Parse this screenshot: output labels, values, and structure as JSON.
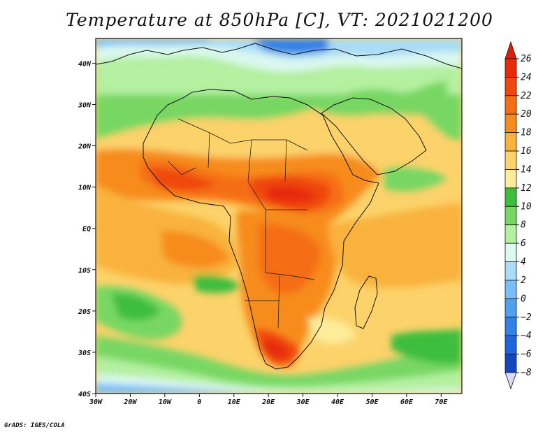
{
  "title": "Temperature at 850hPa [C], VT: 2021021200",
  "credit": "GrADS: IGES/COLA",
  "map": {
    "lon_range": [
      -30,
      76
    ],
    "lat_range": [
      -40,
      46
    ],
    "lon_ticks": [
      {
        "value": -30,
        "label": "30W"
      },
      {
        "value": -20,
        "label": "20W"
      },
      {
        "value": -10,
        "label": "10W"
      },
      {
        "value": 0,
        "label": "0"
      },
      {
        "value": 10,
        "label": "10E"
      },
      {
        "value": 20,
        "label": "20E"
      },
      {
        "value": 30,
        "label": "30E"
      },
      {
        "value": 40,
        "label": "40E"
      },
      {
        "value": 50,
        "label": "50E"
      },
      {
        "value": 60,
        "label": "60E"
      },
      {
        "value": 70,
        "label": "70E"
      }
    ],
    "lat_ticks": [
      {
        "value": 40,
        "label": "40N"
      },
      {
        "value": 30,
        "label": "30N"
      },
      {
        "value": 20,
        "label": "20N"
      },
      {
        "value": 10,
        "label": "10N"
      },
      {
        "value": 0,
        "label": "EQ"
      },
      {
        "value": -10,
        "label": "10S"
      },
      {
        "value": -20,
        "label": "20S"
      },
      {
        "value": -30,
        "label": "30S"
      },
      {
        "value": -40,
        "label": "40S"
      }
    ]
  },
  "colorbar": {
    "levels": [
      {
        "value": "26",
        "color": "#e62a0a"
      },
      {
        "value": "24",
        "color": "#f0460f"
      },
      {
        "value": "22",
        "color": "#f56e14"
      },
      {
        "value": "20",
        "color": "#f78c1e"
      },
      {
        "value": "18",
        "color": "#f9b23c"
      },
      {
        "value": "16",
        "color": "#fcd26a"
      },
      {
        "value": "14",
        "color": "#fdec9a"
      },
      {
        "value": "12",
        "color": "#3cbe3c"
      },
      {
        "value": "10",
        "color": "#78d764"
      },
      {
        "value": "8",
        "color": "#b4f0a0"
      },
      {
        "value": "6",
        "color": "#dcf8f0"
      },
      {
        "value": "4",
        "color": "#a8dcf8"
      },
      {
        "value": "2",
        "color": "#78bef8"
      },
      {
        "value": "0",
        "color": "#50a0f0"
      },
      {
        "value": "−2",
        "color": "#3282e6"
      },
      {
        "value": "−4",
        "color": "#1e64dc"
      },
      {
        "value": "−6",
        "color": "#1446be"
      },
      {
        "value": "−8",
        "color": "#0a2896"
      }
    ],
    "top_arrow_color": "#dc1e0a",
    "bottom_arrow_color": "#dcd8f8"
  }
}
